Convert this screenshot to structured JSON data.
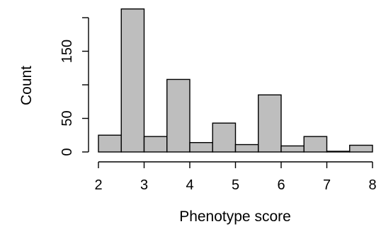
{
  "chart_data": {
    "type": "bar",
    "subtype": "histogram",
    "xlabel": "Phenotype score",
    "ylabel": "Count",
    "bin_width": 0.5,
    "bins": [
      {
        "x0": 2.0,
        "x1": 2.5,
        "count": 25
      },
      {
        "x0": 2.5,
        "x1": 3.0,
        "count": 213
      },
      {
        "x0": 3.0,
        "x1": 3.5,
        "count": 23
      },
      {
        "x0": 3.5,
        "x1": 4.0,
        "count": 108
      },
      {
        "x0": 4.0,
        "x1": 4.5,
        "count": 14
      },
      {
        "x0": 4.5,
        "x1": 5.0,
        "count": 43
      },
      {
        "x0": 5.0,
        "x1": 5.5,
        "count": 11
      },
      {
        "x0": 5.5,
        "x1": 6.0,
        "count": 85
      },
      {
        "x0": 6.0,
        "x1": 6.5,
        "count": 9
      },
      {
        "x0": 6.5,
        "x1": 7.0,
        "count": 23
      },
      {
        "x0": 7.0,
        "x1": 7.5,
        "count": 1
      },
      {
        "x0": 7.5,
        "x1": 8.0,
        "count": 10
      }
    ],
    "xlim": [
      2,
      8
    ],
    "ylim": [
      0,
      200
    ],
    "x_ticks": [
      2,
      3,
      4,
      5,
      6,
      7,
      8
    ],
    "x_tick_labels": [
      "2",
      "3",
      "4",
      "5",
      "6",
      "7",
      "8"
    ],
    "y_ticks": [
      0,
      50,
      100,
      150,
      200
    ],
    "y_tick_labels": [
      "0",
      "50",
      "",
      "150",
      ""
    ],
    "grid": false,
    "legend": "none",
    "colors": {
      "bar_fill": "#bebebe",
      "bar_stroke": "#000000",
      "axis": "#000000"
    }
  }
}
